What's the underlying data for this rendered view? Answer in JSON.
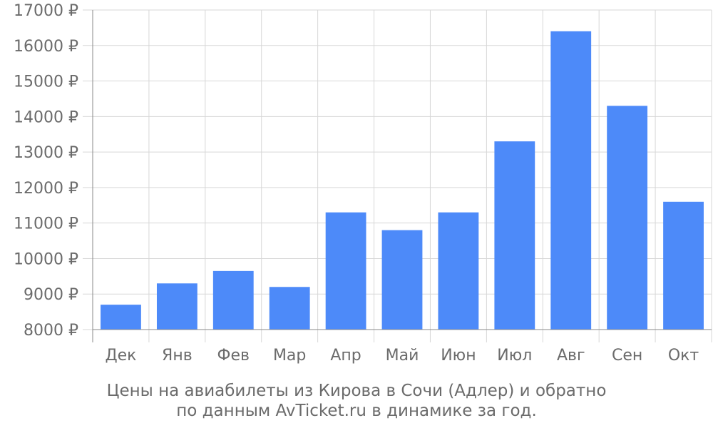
{
  "chart_data": {
    "type": "bar",
    "categories": [
      "Дек",
      "Янв",
      "Фев",
      "Мар",
      "Апр",
      "Май",
      "Июн",
      "Июл",
      "Авг",
      "Сен",
      "Окт"
    ],
    "values": [
      8700,
      9300,
      9650,
      9200,
      11300,
      10800,
      11300,
      13300,
      16400,
      14300,
      11600
    ],
    "ylim": [
      8000,
      17000
    ],
    "yticks": [
      8000,
      9000,
      10000,
      11000,
      12000,
      13000,
      14000,
      15000,
      16000,
      17000
    ],
    "ytick_suffix": " ₽",
    "grid": true,
    "title": "",
    "xlabel": "",
    "ylabel": "",
    "caption_lines": [
      "Цены на авиабилеты из Кирова в Сочи (Адлер) и обратно",
      "по данным AvTicket.ru в динамике за год."
    ],
    "colors": {
      "bar": "#4d8af9",
      "grid": "#d7d7d7",
      "axis": "#8a8a8a",
      "text": "#6b6b6b"
    }
  }
}
